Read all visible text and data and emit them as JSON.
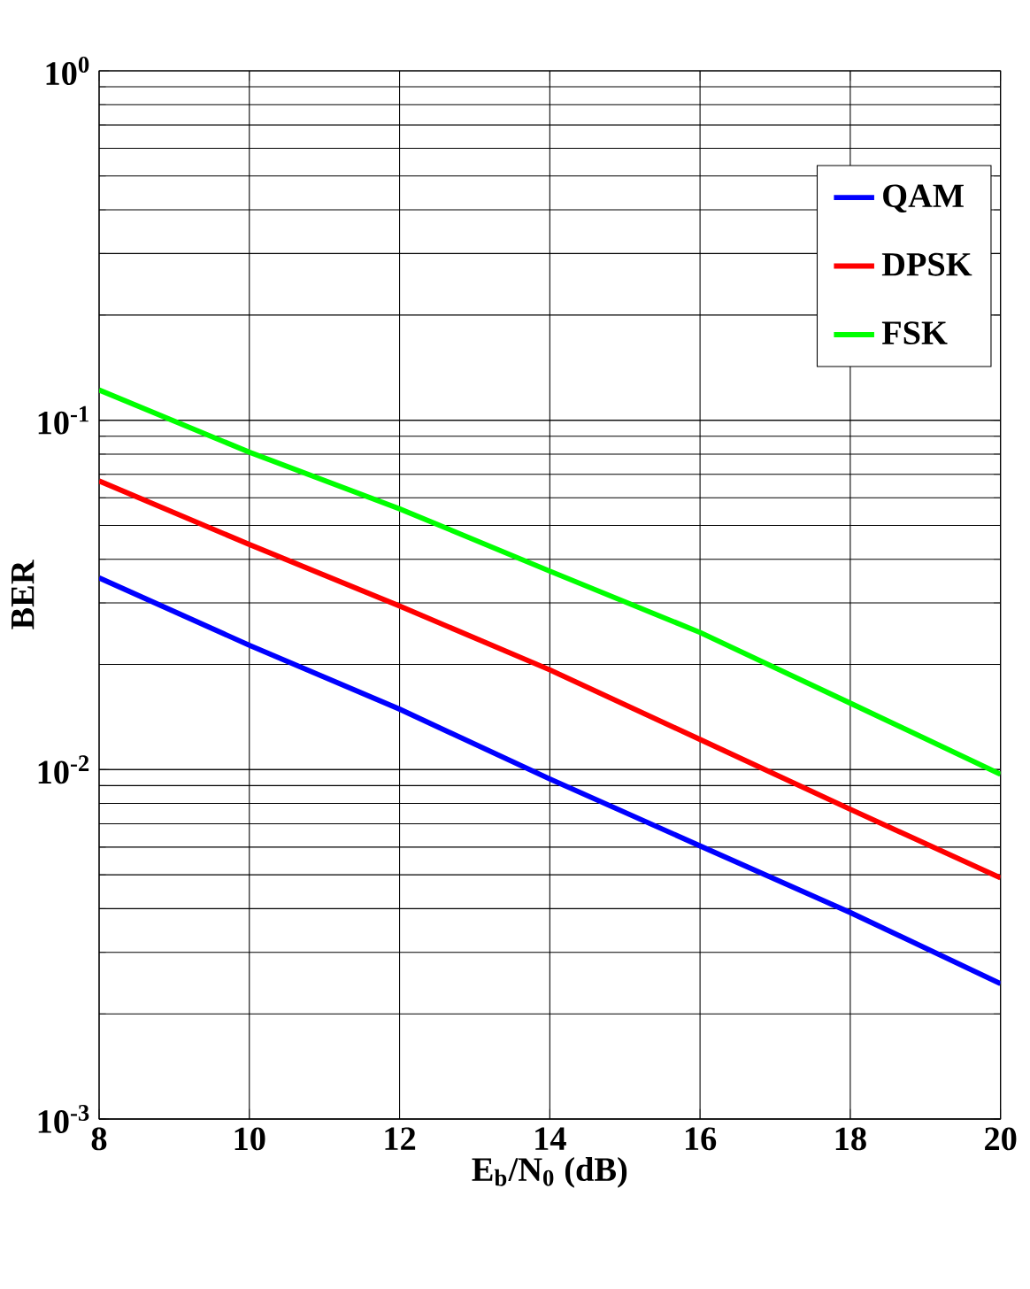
{
  "chart_data": {
    "type": "line",
    "xlabel": "E$_{b}$/N$_{0}$ (dB)",
    "ylabel": "BER",
    "log": "y",
    "grid": true,
    "legend": "top right",
    "marker": "none",
    "line_style": "solid",
    "x": [
      8,
      10,
      12,
      14,
      16,
      18,
      20
    ],
    "xlim": [
      8,
      20
    ],
    "xticks": [
      8,
      10,
      12,
      14,
      16,
      18,
      20
    ],
    "ylim": [
      0.001,
      1
    ],
    "yticks": [
      {
        "value": 0.001,
        "label": "10$^{-3}$"
      },
      {
        "value": 0.01,
        "label": "10$^{-2}$"
      },
      {
        "value": 0.1,
        "label": "10$^{-1}$"
      },
      {
        "value": 1,
        "label": "10$^{0}$"
      }
    ],
    "series": [
      {
        "name": "QAM",
        "color": "#0000ff",
        "values": [
          0.0354,
          0.0227,
          0.0149,
          0.0094,
          0.00605,
          0.0039,
          0.00244
        ]
      },
      {
        "name": "DPSK",
        "color": "#ff0000",
        "values": [
          0.067,
          0.0441,
          0.0294,
          0.0193,
          0.0122,
          0.0077,
          0.0049
        ]
      },
      {
        "name": "FSK",
        "color": "#00ff00",
        "values": [
          0.122,
          0.081,
          0.0558,
          0.037,
          0.0247,
          0.0155,
          0.0097
        ]
      }
    ]
  }
}
